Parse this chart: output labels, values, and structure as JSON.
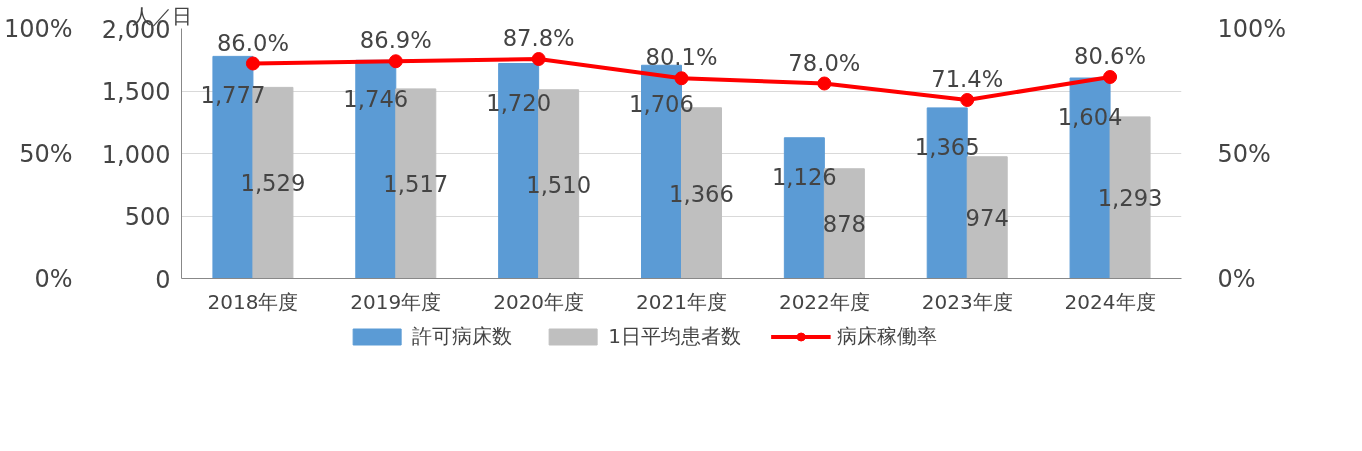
{
  "chart_data": {
    "type": "bar",
    "ylabel": "人／日",
    "categories": [
      "2018年度",
      "2019年度",
      "2020年度",
      "2021年度",
      "2022年度",
      "2023年度",
      "2024年度"
    ],
    "series": [
      {
        "name": "許可病床数",
        "color": "#5b9bd5",
        "values": [
          1777,
          1746,
          1720,
          1706,
          1126,
          1365,
          1604
        ],
        "value_labels": [
          "1,777",
          "1,746",
          "1,720",
          "1,706",
          "1,126",
          "1,365",
          "1,604"
        ]
      },
      {
        "name": "1日平均患者数",
        "color": "#bfbfbf",
        "values": [
          1529,
          1517,
          1510,
          1366,
          878,
          974,
          1293
        ],
        "value_labels": [
          "1,529",
          "1,517",
          "1,510",
          "1,366",
          "878",
          "974",
          "1,293"
        ]
      },
      {
        "name": "病床稼働率",
        "type": "line",
        "axis": "y2",
        "color": "#ff0000",
        "marker": "circle",
        "values": [
          86.0,
          86.9,
          87.8,
          80.1,
          78.0,
          71.4,
          80.6
        ],
        "value_labels": [
          "86.0%",
          "86.9%",
          "87.8%",
          "80.1%",
          "78.0%",
          "71.4%",
          "80.6%"
        ]
      }
    ],
    "ylim": [
      0,
      2000
    ],
    "yticks": [
      {
        "value": 0,
        "label": "0"
      },
      {
        "value": 500,
        "label": "500"
      },
      {
        "value": 1000,
        "label": "1,000"
      },
      {
        "value": 1500,
        "label": "1,500"
      },
      {
        "value": 2000,
        "label": "2,000"
      }
    ],
    "y2lim": [
      0,
      100
    ],
    "y2ticks": [
      {
        "value": 0,
        "label": "0%"
      },
      {
        "value": 50,
        "label": "50%"
      },
      {
        "value": 100,
        "label": "100%"
      }
    ],
    "y3lim": [
      0,
      100
    ],
    "y3ticks": [
      {
        "value": 0,
        "label": "0%"
      },
      {
        "value": 50,
        "label": "50%"
      },
      {
        "value": 100,
        "label": "100%"
      }
    ],
    "grid": "y",
    "legend": "bottom"
  }
}
